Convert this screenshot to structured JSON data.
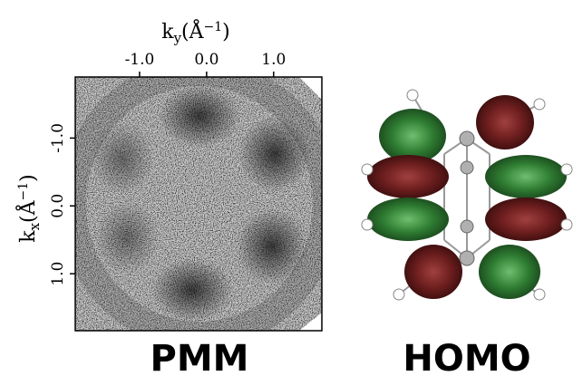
{
  "left_panel": {
    "xlabel": {
      "base": "k",
      "sub": "y",
      "open": "(Å",
      "sup": "−1",
      "close": ")"
    },
    "ylabel": {
      "base": "k",
      "sub": "x",
      "open": "(Å",
      "sup": "−1",
      "close": ")"
    },
    "xlim": [
      -1.96,
      1.72
    ],
    "ylim": [
      -1.9,
      1.84
    ],
    "xticks": [
      {
        "value": -1,
        "label": "-1.0"
      },
      {
        "value": 0,
        "label": "0.0"
      },
      {
        "value": 1,
        "label": "1.0"
      }
    ],
    "yticks": [
      {
        "value": -1,
        "label": "-1.0"
      },
      {
        "value": 0,
        "label": "0.0"
      },
      {
        "value": 1,
        "label": "1.0"
      }
    ],
    "caption": "PMM"
  },
  "right_panel": {
    "caption": "HOMO"
  }
}
